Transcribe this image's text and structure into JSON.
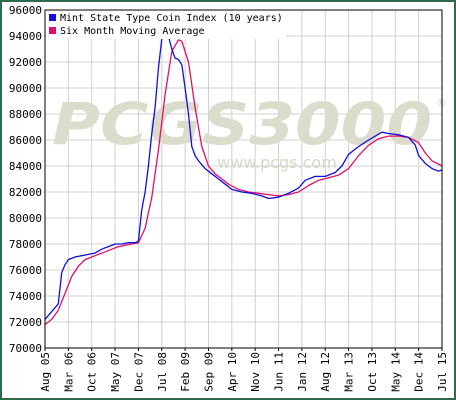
{
  "colors": {
    "frame": "#2f6b4f",
    "grid": "#d0d0d0",
    "axis": "#000000",
    "index_line": "#1010e0",
    "average_line": "#e0106a",
    "watermark": "#dcdccc"
  },
  "watermark": {
    "brand": "PCGS3000",
    "registered_mark": "®",
    "url": "www.pcgs.com"
  },
  "chart_data": {
    "type": "line",
    "title": "",
    "xlabel": "",
    "ylabel": "",
    "ylim": [
      70000,
      96000
    ],
    "yticks": [
      70000,
      72000,
      74000,
      76000,
      78000,
      80000,
      82000,
      84000,
      86000,
      88000,
      90000,
      92000,
      94000,
      96000
    ],
    "xlim": [
      "2005-08",
      "2015-07"
    ],
    "x_ticks": [
      {
        "label": "Aug 05",
        "date": "2005-08"
      },
      {
        "label": "Mar 06",
        "date": "2006-03"
      },
      {
        "label": "Oct 06",
        "date": "2006-10"
      },
      {
        "label": "May 07",
        "date": "2007-05"
      },
      {
        "label": "Dec 07",
        "date": "2007-12"
      },
      {
        "label": "Jul 08",
        "date": "2008-07"
      },
      {
        "label": "Feb 09",
        "date": "2009-02"
      },
      {
        "label": "Sep 09",
        "date": "2009-09"
      },
      {
        "label": "Apr 10",
        "date": "2010-04"
      },
      {
        "label": "Nov 10",
        "date": "2010-11"
      },
      {
        "label": "Jun 11",
        "date": "2011-06"
      },
      {
        "label": "Jan 12",
        "date": "2012-01"
      },
      {
        "label": "Aug 12",
        "date": "2012-08"
      },
      {
        "label": "Mar 13",
        "date": "2013-03"
      },
      {
        "label": "Oct 13",
        "date": "2013-10"
      },
      {
        "label": "May 14",
        "date": "2014-05"
      },
      {
        "label": "Dec 14",
        "date": "2014-12"
      },
      {
        "label": "Jul 15",
        "date": "2015-07"
      }
    ],
    "grid": true,
    "legend_position": "top-left",
    "series": [
      {
        "name": "Mint State Type Coin Index (10 years)",
        "color": "#1010e0",
        "points": [
          [
            "2005-08",
            72200
          ],
          [
            "2005-10",
            72800
          ],
          [
            "2005-12",
            73400
          ],
          [
            "2006-01",
            75800
          ],
          [
            "2006-02",
            76400
          ],
          [
            "2006-03",
            76800
          ],
          [
            "2006-05",
            77000
          ],
          [
            "2006-07",
            77100
          ],
          [
            "2006-09",
            77200
          ],
          [
            "2006-11",
            77300
          ],
          [
            "2007-01",
            77600
          ],
          [
            "2007-03",
            77800
          ],
          [
            "2007-05",
            78000
          ],
          [
            "2007-07",
            78000
          ],
          [
            "2007-09",
            78100
          ],
          [
            "2007-11",
            78100
          ],
          [
            "2007-12",
            78200
          ],
          [
            "2008-01",
            80600
          ],
          [
            "2008-02",
            82000
          ],
          [
            "2008-03",
            84000
          ],
          [
            "2008-04",
            86500
          ],
          [
            "2008-05",
            88500
          ],
          [
            "2008-06",
            91500
          ],
          [
            "2008-07",
            93800
          ],
          [
            "2008-08",
            94200
          ],
          [
            "2008-09",
            94000
          ],
          [
            "2008-10",
            93000
          ],
          [
            "2008-11",
            92300
          ],
          [
            "2008-12",
            92200
          ],
          [
            "2009-01",
            91800
          ],
          [
            "2009-02",
            90000
          ],
          [
            "2009-03",
            88000
          ],
          [
            "2009-04",
            85500
          ],
          [
            "2009-05",
            84800
          ],
          [
            "2009-06",
            84400
          ],
          [
            "2009-08",
            83800
          ],
          [
            "2009-10",
            83400
          ],
          [
            "2009-12",
            83000
          ],
          [
            "2010-02",
            82600
          ],
          [
            "2010-04",
            82200
          ],
          [
            "2010-07",
            82000
          ],
          [
            "2010-10",
            81900
          ],
          [
            "2011-01",
            81700
          ],
          [
            "2011-03",
            81500
          ],
          [
            "2011-06",
            81600
          ],
          [
            "2011-09",
            81900
          ],
          [
            "2011-12",
            82300
          ],
          [
            "2012-02",
            82900
          ],
          [
            "2012-05",
            83200
          ],
          [
            "2012-08",
            83200
          ],
          [
            "2012-11",
            83500
          ],
          [
            "2013-01",
            84000
          ],
          [
            "2013-03",
            84900
          ],
          [
            "2013-06",
            85500
          ],
          [
            "2013-09",
            86000
          ],
          [
            "2013-11",
            86300
          ],
          [
            "2014-01",
            86600
          ],
          [
            "2014-03",
            86500
          ],
          [
            "2014-06",
            86400
          ],
          [
            "2014-09",
            86200
          ],
          [
            "2014-11",
            85600
          ],
          [
            "2014-12",
            84800
          ],
          [
            "2015-02",
            84200
          ],
          [
            "2015-04",
            83800
          ],
          [
            "2015-06",
            83600
          ],
          [
            "2015-07",
            83700
          ]
        ]
      },
      {
        "name": "Six Month Moving Average",
        "color": "#e0106a",
        "points": [
          [
            "2005-08",
            71800
          ],
          [
            "2005-10",
            72200
          ],
          [
            "2005-12",
            72900
          ],
          [
            "2006-02",
            74200
          ],
          [
            "2006-04",
            75500
          ],
          [
            "2006-06",
            76300
          ],
          [
            "2006-08",
            76800
          ],
          [
            "2006-10",
            77000
          ],
          [
            "2006-12",
            77200
          ],
          [
            "2007-02",
            77400
          ],
          [
            "2007-04",
            77600
          ],
          [
            "2007-06",
            77800
          ],
          [
            "2007-08",
            77900
          ],
          [
            "2007-10",
            78000
          ],
          [
            "2007-12",
            78100
          ],
          [
            "2008-02",
            79200
          ],
          [
            "2008-04",
            81600
          ],
          [
            "2008-06",
            85200
          ],
          [
            "2008-08",
            89500
          ],
          [
            "2008-10",
            92800
          ],
          [
            "2008-12",
            93700
          ],
          [
            "2009-01",
            93600
          ],
          [
            "2009-03",
            92000
          ],
          [
            "2009-05",
            88500
          ],
          [
            "2009-07",
            85500
          ],
          [
            "2009-09",
            84000
          ],
          [
            "2009-11",
            83400
          ],
          [
            "2010-01",
            83000
          ],
          [
            "2010-03",
            82600
          ],
          [
            "2010-06",
            82200
          ],
          [
            "2010-09",
            82000
          ],
          [
            "2010-12",
            81900
          ],
          [
            "2011-03",
            81800
          ],
          [
            "2011-06",
            81700
          ],
          [
            "2011-09",
            81800
          ],
          [
            "2011-12",
            82000
          ],
          [
            "2012-03",
            82500
          ],
          [
            "2012-06",
            82900
          ],
          [
            "2012-09",
            83100
          ],
          [
            "2012-12",
            83300
          ],
          [
            "2013-03",
            83800
          ],
          [
            "2013-06",
            84800
          ],
          [
            "2013-09",
            85600
          ],
          [
            "2013-12",
            86100
          ],
          [
            "2014-03",
            86300
          ],
          [
            "2014-06",
            86300
          ],
          [
            "2014-09",
            86200
          ],
          [
            "2014-12",
            85800
          ],
          [
            "2015-02",
            85000
          ],
          [
            "2015-04",
            84400
          ],
          [
            "2015-07",
            84000
          ]
        ]
      }
    ]
  }
}
